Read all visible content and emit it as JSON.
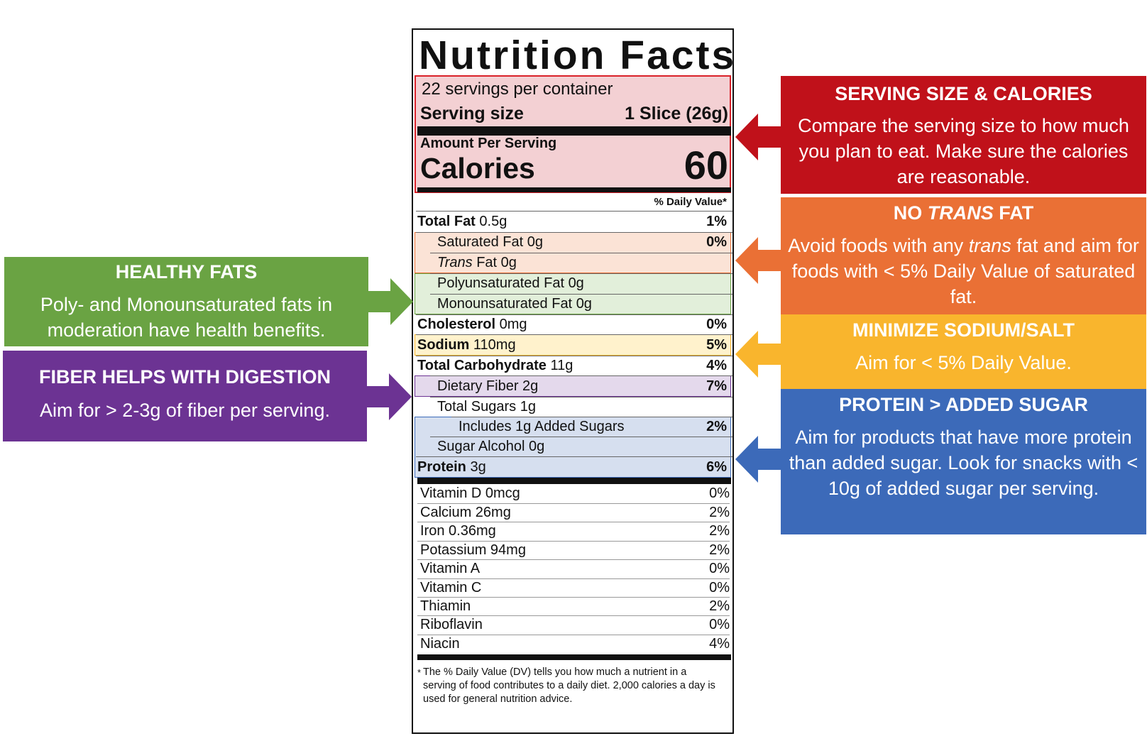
{
  "label": {
    "title": "Nutrition Facts",
    "servings": "22 servings per container",
    "serving_size_label": "Serving size",
    "serving_size_value": "1 Slice (26g)",
    "amount_per_serving": "Amount Per Serving",
    "calories_label": "Calories",
    "calories_value": "60",
    "dv_header": "% Daily Value*",
    "rows": [
      {
        "name": "Total Fat",
        "amount": "0.5g",
        "dv": "1%"
      },
      {
        "name": "Saturated Fat",
        "amount": "0g",
        "dv": "0%"
      },
      {
        "name": "Trans",
        "name_rest": "Fat 0g",
        "dv": ""
      },
      {
        "name": "Polyunsaturated Fat",
        "amount": "0g",
        "dv": ""
      },
      {
        "name": "Monounsaturated Fat",
        "amount": "0g",
        "dv": ""
      },
      {
        "name": "Cholesterol",
        "amount": "0mg",
        "dv": "0%"
      },
      {
        "name": "Sodium",
        "amount": "110mg",
        "dv": "5%"
      },
      {
        "name": "Total Carbohydrate",
        "amount": "11g",
        "dv": "4%"
      },
      {
        "name": "Dietary Fiber",
        "amount": "2g",
        "dv": "7%"
      },
      {
        "name": "Total Sugars",
        "amount": "1g",
        "dv": ""
      },
      {
        "name": "Includes 1g Added Sugars",
        "amount": "",
        "dv": "2%"
      },
      {
        "name": "Sugar Alcohol",
        "amount": "0g",
        "dv": ""
      },
      {
        "name": "Protein",
        "amount": "3g",
        "dv": "6%"
      }
    ],
    "vitamins": [
      {
        "name": "Vitamin D 0mcg",
        "dv": "0%"
      },
      {
        "name": "Calcium 26mg",
        "dv": "2%"
      },
      {
        "name": "Iron 0.36mg",
        "dv": "2%"
      },
      {
        "name": "Potassium 94mg",
        "dv": "2%"
      },
      {
        "name": "Vitamin A",
        "dv": "0%"
      },
      {
        "name": "Vitamin C",
        "dv": "0%"
      },
      {
        "name": "Thiamin",
        "dv": "2%"
      },
      {
        "name": "Riboflavin",
        "dv": "0%"
      },
      {
        "name": "Niacin",
        "dv": "4%"
      }
    ],
    "footnote_star": "*",
    "footnote": "The % Daily Value (DV) tells you how much a nutrient in a serving of food contributes to a daily diet. 2,000 calories a day is used for general nutrition advice."
  },
  "callouts": {
    "serving": {
      "heading": "SERVING SIZE & CALORIES",
      "body": "Compare the serving size to how much you plan to eat. Make sure the calories are reasonable.",
      "color": "#C0111A"
    },
    "trans": {
      "heading_pre": "NO ",
      "heading_em": "TRANS",
      "heading_post": " FAT",
      "body_pre": "Avoid foods with any ",
      "body_em": "trans",
      "body_post": " fat and aim for foods with < 5% Daily Value of saturated fat.",
      "color": "#EA7035"
    },
    "sodium": {
      "heading": "MINIMIZE SODIUM/SALT",
      "body": "Aim for < 5% Daily Value.",
      "color": "#F9B52D"
    },
    "protein": {
      "heading": "PROTEIN > ADDED SUGAR",
      "body": "Aim for products that have more protein than added sugar. Look for snacks with < 10g of added sugar per serving.",
      "color": "#3C6AB9"
    },
    "fats": {
      "heading": "HEALTHY FATS",
      "body": "Poly- and Monounsaturated fats in moderation have health benefits.",
      "color": "#6AA343"
    },
    "fiber": {
      "heading": "FIBER HELPS WITH DIGESTION",
      "body": "Aim for > 2-3g of fiber per serving.",
      "color": "#6C3393"
    }
  }
}
